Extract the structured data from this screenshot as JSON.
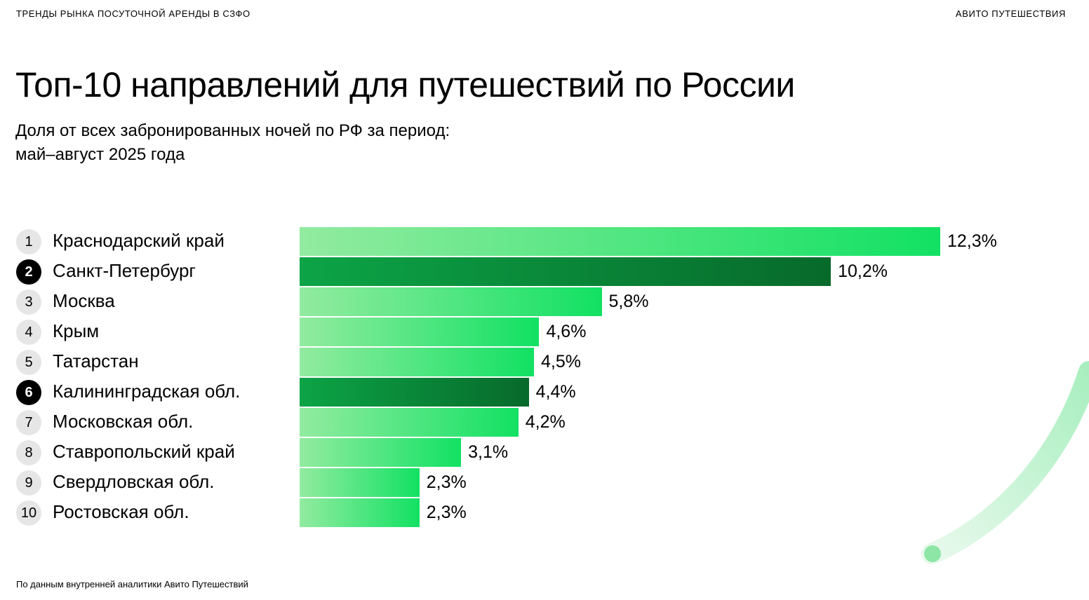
{
  "header": {
    "left": "ТРЕНДЫ РЫНКА ПОСУТОЧНОЙ АРЕНДЫ В СЗФО",
    "right": "АВИТО ПУТЕШЕСТВИЯ"
  },
  "footer": "По данным внутренней аналитики Авито Путешествий",
  "colors": {
    "bar_light_start": "#92eba0",
    "bar_light_end": "#12e163",
    "bar_dark_start": "#0ca446",
    "bar_dark_end": "#076a2b"
  },
  "chart_data": {
    "type": "bar",
    "orientation": "horizontal",
    "title": "Топ-10 направлений для путешествий по России",
    "subtitle_line1": "Доля от всех забронированных ночей по РФ за период:",
    "subtitle_line2": "май–август 2025 года",
    "unit": "%",
    "ranks": [
      "1",
      "2",
      "3",
      "4",
      "5",
      "6",
      "7",
      "8",
      "9",
      "10"
    ],
    "categories": [
      "Краснодарский край",
      "Санкт-Петербург",
      "Москва",
      "Крым",
      "Татарстан",
      "Калининградская обл.",
      "Московская обл.",
      "Ставропольский край",
      "Свердловская обл.",
      "Ростовская обл."
    ],
    "values": [
      12.3,
      10.2,
      5.8,
      4.6,
      4.5,
      4.4,
      4.2,
      3.1,
      2.3,
      2.3
    ],
    "labels": [
      "12,3%",
      "10,2%",
      "5,8%",
      "4,6%",
      "4,5%",
      "4,4%",
      "4,2%",
      "3,1%",
      "2,3%",
      "2,3%"
    ],
    "highlighted": [
      false,
      true,
      false,
      false,
      false,
      true,
      false,
      false,
      false,
      false
    ]
  }
}
